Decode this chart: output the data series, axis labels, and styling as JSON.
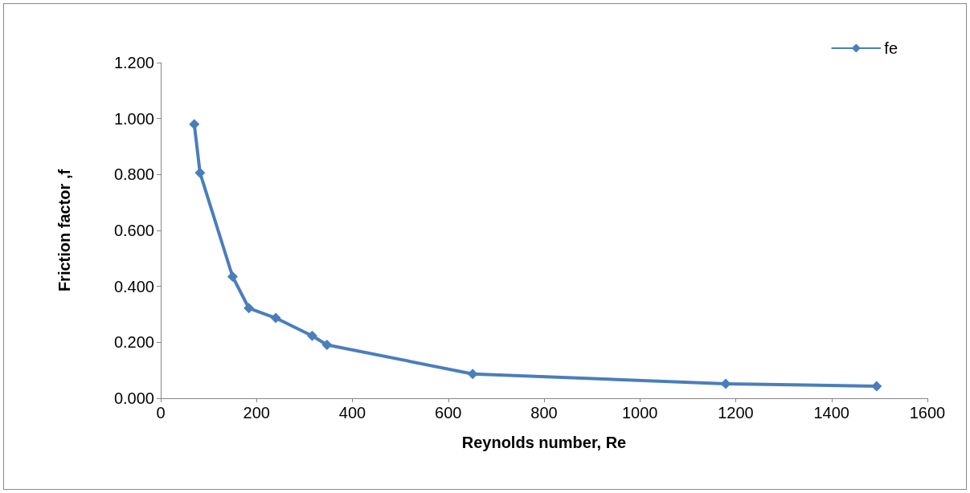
{
  "chart_data": {
    "type": "line",
    "xlabel": "Reynolds number, Re",
    "ylabel": "Friction factor ,f",
    "x": [
      70,
      82,
      150,
      184,
      240,
      316,
      347,
      651,
      1179,
      1494
    ],
    "series": [
      {
        "name": "fe",
        "color": "#4a7ebb",
        "values": [
          0.98,
          0.806,
          0.435,
          0.322,
          0.287,
          0.223,
          0.191,
          0.087,
          0.052,
          0.043
        ]
      }
    ],
    "xlim": [
      0,
      1600
    ],
    "xticks": [
      0,
      200,
      400,
      600,
      800,
      1000,
      1200,
      1400,
      1600
    ],
    "ylim": [
      0,
      1.2
    ],
    "yticks": [
      {
        "value": 0,
        "label": "0.000"
      },
      {
        "value": 0.2,
        "label": "0.200"
      },
      {
        "value": 0.4,
        "label": "0.400"
      },
      {
        "value": 0.6,
        "label": "0.600"
      },
      {
        "value": 0.8,
        "label": "0.800"
      },
      {
        "value": 1,
        "label": "1.000"
      },
      {
        "value": 1.2,
        "label": "1.200"
      }
    ],
    "grid": false,
    "legend": "top right",
    "marker": "diamond",
    "line_style": "solid"
  }
}
